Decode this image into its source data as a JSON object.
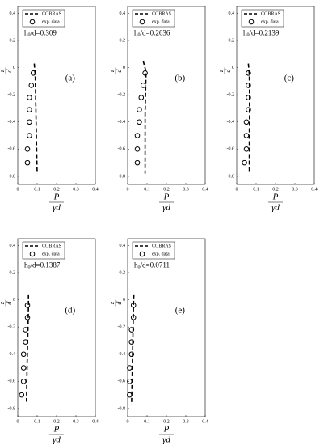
{
  "chart_data": [
    {
      "type": "line",
      "panel": "(a)",
      "annotation": {
        "base": "h",
        "subscript": "0",
        "text": "/d=0.309"
      },
      "x_label": {
        "numerator": "P",
        "denominator": "γd"
      },
      "y_label": {
        "numerator": "z",
        "denominator": "d"
      },
      "xlim": [
        0,
        0.4
      ],
      "ylim": [
        -0.86,
        0.45
      ],
      "xticks": [
        0,
        0.1,
        0.2,
        0.3,
        0.4
      ],
      "yticks": [
        0.4,
        0.2,
        0,
        -0.2,
        -0.4,
        -0.6,
        -0.8
      ],
      "series": [
        {
          "name": "COBRAS",
          "color": "#000000",
          "style": "dashed",
          "x": [
            0.085,
            0.09,
            0.092,
            0.094,
            0.096,
            0.098,
            0.1
          ],
          "values": [
            0.03,
            -0.05,
            -0.2,
            -0.35,
            -0.5,
            -0.65,
            -0.78
          ]
        },
        {
          "name": "exp. data",
          "color": "#000000",
          "style": "circle",
          "x": [
            0.08,
            0.07,
            0.06,
            0.06,
            0.06,
            0.06,
            0.05,
            0.05
          ],
          "values": [
            -0.04,
            -0.13,
            -0.22,
            -0.31,
            -0.4,
            -0.5,
            -0.6,
            -0.7
          ]
        }
      ]
    },
    {
      "type": "line",
      "panel": "(b)",
      "annotation": {
        "base": "h",
        "subscript": "0",
        "text": "/d=0.2636"
      },
      "x_label": {
        "numerator": "P",
        "denominator": "γd"
      },
      "y_label": {
        "numerator": "z",
        "denominator": "d"
      },
      "xlim": [
        0,
        0.4
      ],
      "ylim": [
        -0.86,
        0.45
      ],
      "xticks": [
        0,
        0.1,
        0.2,
        0.3,
        0.4
      ],
      "yticks": [
        0.4,
        0.2,
        0,
        -0.2,
        -0.4,
        -0.6,
        -0.8
      ],
      "series": [
        {
          "name": "COBRAS",
          "color": "#000000",
          "style": "dashed",
          "x": [
            0.08,
            0.095,
            0.092,
            0.09,
            0.09,
            0.09,
            0.09
          ],
          "values": [
            0.05,
            -0.03,
            -0.2,
            -0.35,
            -0.5,
            -0.65,
            -0.78
          ]
        },
        {
          "name": "exp. data",
          "color": "#000000",
          "style": "circle",
          "x": [
            0.09,
            0.08,
            0.07,
            0.06,
            0.06,
            0.05,
            0.05,
            0.05
          ],
          "values": [
            -0.04,
            -0.13,
            -0.22,
            -0.31,
            -0.4,
            -0.5,
            -0.6,
            -0.7
          ]
        }
      ]
    },
    {
      "type": "line",
      "panel": "(c)",
      "annotation": {
        "base": "h",
        "subscript": "0",
        "text": "/d=0.2139"
      },
      "x_label": {
        "numerator": "P",
        "denominator": "γd"
      },
      "y_label": {
        "numerator": "z",
        "denominator": "d"
      },
      "xlim": [
        0,
        0.4
      ],
      "ylim": [
        -0.86,
        0.45
      ],
      "xticks": [
        0,
        0.1,
        0.2,
        0.3,
        0.4
      ],
      "yticks": [
        0.4,
        0.2,
        0,
        -0.2,
        -0.4,
        -0.6,
        -0.8
      ],
      "series": [
        {
          "name": "COBRAS",
          "color": "#000000",
          "style": "dashed",
          "x": [
            0.06,
            0.065,
            0.066,
            0.066,
            0.065,
            0.065,
            0.065
          ],
          "values": [
            0.03,
            -0.05,
            -0.2,
            -0.35,
            -0.5,
            -0.65,
            -0.77
          ]
        },
        {
          "name": "exp. data",
          "color": "#000000",
          "style": "circle",
          "x": [
            0.06,
            0.06,
            0.06,
            0.06,
            0.05,
            0.05,
            0.05,
            0.04
          ],
          "values": [
            -0.04,
            -0.13,
            -0.22,
            -0.31,
            -0.4,
            -0.5,
            -0.6,
            -0.7
          ]
        }
      ]
    },
    {
      "type": "line",
      "panel": "(d)",
      "annotation": {
        "base": "h",
        "subscript": "0",
        "text": "/d=0.1387"
      },
      "x_label": {
        "numerator": "P",
        "denominator": "γd"
      },
      "y_label": {
        "numerator": "z",
        "denominator": "d"
      },
      "xlim": [
        0,
        0.4
      ],
      "ylim": [
        -0.86,
        0.45
      ],
      "xticks": [
        0,
        0.1,
        0.2,
        0.3,
        0.4
      ],
      "yticks": [
        0.4,
        0.2,
        0,
        -0.2,
        -0.4,
        -0.6,
        -0.8
      ],
      "series": [
        {
          "name": "COBRAS",
          "color": "#000000",
          "style": "dashed",
          "x": [
            0.055,
            0.055,
            0.053,
            0.05,
            0.048,
            0.046,
            0.045
          ],
          "values": [
            0.04,
            -0.05,
            -0.2,
            -0.35,
            -0.5,
            -0.65,
            -0.75
          ]
        },
        {
          "name": "exp. data",
          "color": "#000000",
          "style": "circle",
          "x": [
            0.05,
            0.05,
            0.04,
            0.04,
            0.03,
            0.03,
            0.03,
            0.02
          ],
          "values": [
            -0.04,
            -0.13,
            -0.22,
            -0.31,
            -0.4,
            -0.5,
            -0.6,
            -0.7
          ]
        }
      ]
    },
    {
      "type": "line",
      "panel": "(e)",
      "annotation": {
        "base": "h",
        "subscript": "0",
        "text": "/d=0.0711"
      },
      "x_label": {
        "numerator": "P",
        "denominator": "γd"
      },
      "y_label": {
        "numerator": "z",
        "denominator": "d"
      },
      "xlim": [
        0,
        0.4
      ],
      "ylim": [
        -0.86,
        0.45
      ],
      "xticks": [
        0,
        0.1,
        0.2,
        0.3,
        0.4
      ],
      "yticks": [
        0.4,
        0.2,
        0,
        -0.2,
        -0.4,
        -0.6,
        -0.8
      ],
      "series": [
        {
          "name": "COBRAS",
          "color": "#000000",
          "style": "dashed",
          "x": [
            0.032,
            0.03,
            0.028,
            0.026,
            0.024,
            0.022,
            0.02
          ],
          "values": [
            0.04,
            -0.05,
            -0.2,
            -0.35,
            -0.5,
            -0.65,
            -0.77
          ]
        },
        {
          "name": "exp. data",
          "color": "#000000",
          "style": "circle",
          "x": [
            0.03,
            0.03,
            0.02,
            0.02,
            0.02,
            0.01,
            0.01,
            0.01
          ],
          "values": [
            -0.04,
            -0.13,
            -0.22,
            -0.31,
            -0.4,
            -0.5,
            -0.6,
            -0.7
          ]
        }
      ]
    }
  ]
}
